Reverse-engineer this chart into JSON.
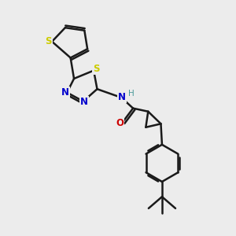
{
  "bg_color": "#ECECEC",
  "bond_color": "#1a1a1a",
  "bond_width": 1.8,
  "S_color": "#cccc00",
  "N_color": "#0000cc",
  "O_color": "#cc0000",
  "H_color": "#4a9999",
  "figsize": [
    3.0,
    3.0
  ],
  "dpi": 100,
  "xlim": [
    0,
    10
  ],
  "ylim": [
    0,
    10
  ]
}
